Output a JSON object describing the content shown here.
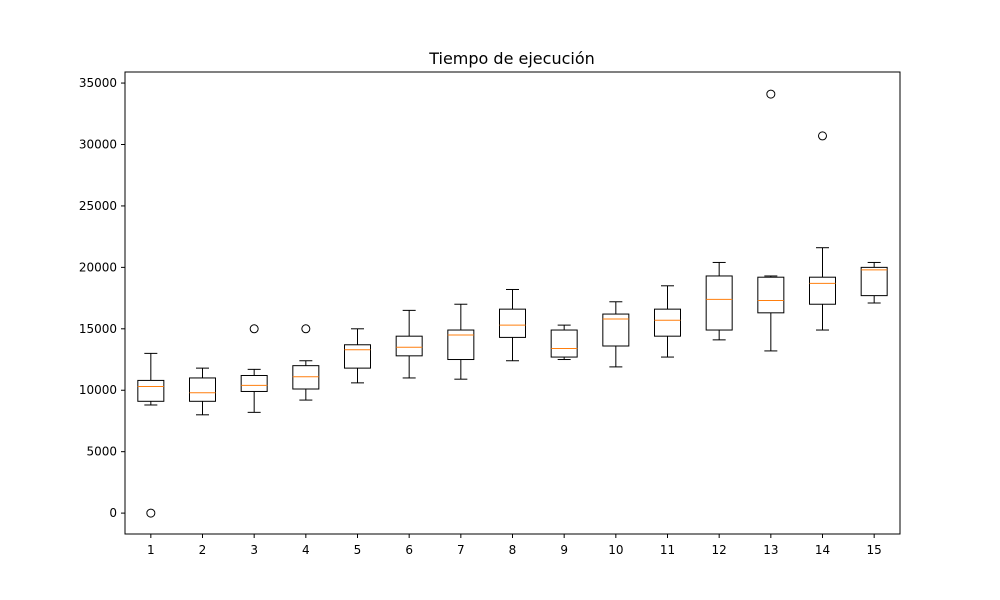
{
  "chart_data": {
    "type": "box",
    "title": "Tiempo de ejecución",
    "xlabel": "",
    "ylabel": "",
    "ylim": [
      -1700,
      35900
    ],
    "yticks": [
      0,
      5000,
      10000,
      15000,
      20000,
      25000,
      30000,
      35000
    ],
    "categories": [
      "1",
      "2",
      "3",
      "4",
      "5",
      "6",
      "7",
      "8",
      "9",
      "10",
      "11",
      "12",
      "13",
      "14",
      "15"
    ],
    "boxes": [
      {
        "whisker_low": 8800,
        "q1": 9100,
        "median": 10300,
        "q3": 10800,
        "whisker_high": 13000,
        "outliers": [
          0
        ]
      },
      {
        "whisker_low": 8000,
        "q1": 9100,
        "median": 9800,
        "q3": 11000,
        "whisker_high": 11800,
        "outliers": []
      },
      {
        "whisker_low": 8200,
        "q1": 9900,
        "median": 10400,
        "q3": 11200,
        "whisker_high": 11700,
        "outliers": [
          15000
        ]
      },
      {
        "whisker_low": 9200,
        "q1": 10100,
        "median": 11100,
        "q3": 12000,
        "whisker_high": 12400,
        "outliers": [
          15000
        ]
      },
      {
        "whisker_low": 10600,
        "q1": 11800,
        "median": 13300,
        "q3": 13700,
        "whisker_high": 15000,
        "outliers": []
      },
      {
        "whisker_low": 11000,
        "q1": 12800,
        "median": 13500,
        "q3": 14400,
        "whisker_high": 16500,
        "outliers": []
      },
      {
        "whisker_low": 10900,
        "q1": 12500,
        "median": 14500,
        "q3": 14900,
        "whisker_high": 17000,
        "outliers": []
      },
      {
        "whisker_low": 12400,
        "q1": 14300,
        "median": 15300,
        "q3": 16600,
        "whisker_high": 18200,
        "outliers": []
      },
      {
        "whisker_low": 12500,
        "q1": 12700,
        "median": 13400,
        "q3": 14900,
        "whisker_high": 15300,
        "outliers": []
      },
      {
        "whisker_low": 11900,
        "q1": 13600,
        "median": 15800,
        "q3": 16200,
        "whisker_high": 17200,
        "outliers": []
      },
      {
        "whisker_low": 12700,
        "q1": 14400,
        "median": 15700,
        "q3": 16600,
        "whisker_high": 18500,
        "outliers": []
      },
      {
        "whisker_low": 14100,
        "q1": 14900,
        "median": 17400,
        "q3": 19300,
        "whisker_high": 20400,
        "outliers": []
      },
      {
        "whisker_low": 13200,
        "q1": 16300,
        "median": 17300,
        "q3": 19200,
        "whisker_high": 19300,
        "outliers": [
          34100
        ]
      },
      {
        "whisker_low": 14900,
        "q1": 17000,
        "median": 18700,
        "q3": 19200,
        "whisker_high": 21600,
        "outliers": [
          30700
        ]
      },
      {
        "whisker_low": 17100,
        "q1": 17700,
        "median": 19800,
        "q3": 20000,
        "whisker_high": 20400,
        "outliers": []
      }
    ],
    "colors": {
      "box": "#000000",
      "median": "#ff7f0e",
      "outlier": "#000000",
      "axes": "#000000",
      "background": "#ffffff"
    },
    "grid": false,
    "legend": "none"
  }
}
